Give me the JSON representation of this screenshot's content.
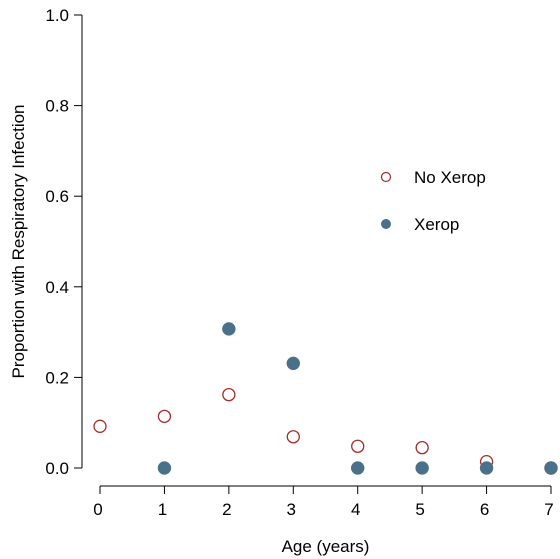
{
  "chart_data": {
    "type": "scatter",
    "title": "",
    "xlabel": "Age (years)",
    "ylabel": "Proportion with Respiratory Infection",
    "xlim": [
      0,
      7
    ],
    "ylim": [
      0,
      1
    ],
    "xticks": [
      0,
      1,
      2,
      3,
      4,
      5,
      6,
      7
    ],
    "yticks": [
      0.0,
      0.2,
      0.4,
      0.6,
      0.8,
      1.0
    ],
    "xtick_labels": [
      "0",
      "1",
      "2",
      "3",
      "4",
      "5",
      "6",
      "7"
    ],
    "ytick_labels": [
      "0.0",
      "0.2",
      "0.4",
      "0.6",
      "0.8",
      "1.0"
    ],
    "grid": false,
    "legend_position": "right-middle",
    "series": [
      {
        "name": "No Xerop",
        "marker": "open-circle",
        "color": "#a52a2a",
        "x": [
          0,
          1,
          2,
          3,
          4,
          5,
          6,
          7
        ],
        "y": [
          0.092,
          0.114,
          0.162,
          0.069,
          0.048,
          0.045,
          0.014,
          0.0
        ]
      },
      {
        "name": "Xerop",
        "marker": "filled-circle",
        "color": "#4a7189",
        "x": [
          1,
          2,
          3,
          4,
          5,
          6,
          7
        ],
        "y": [
          0.0,
          0.307,
          0.231,
          0.0,
          0.0,
          0.0,
          0.0
        ]
      }
    ]
  }
}
